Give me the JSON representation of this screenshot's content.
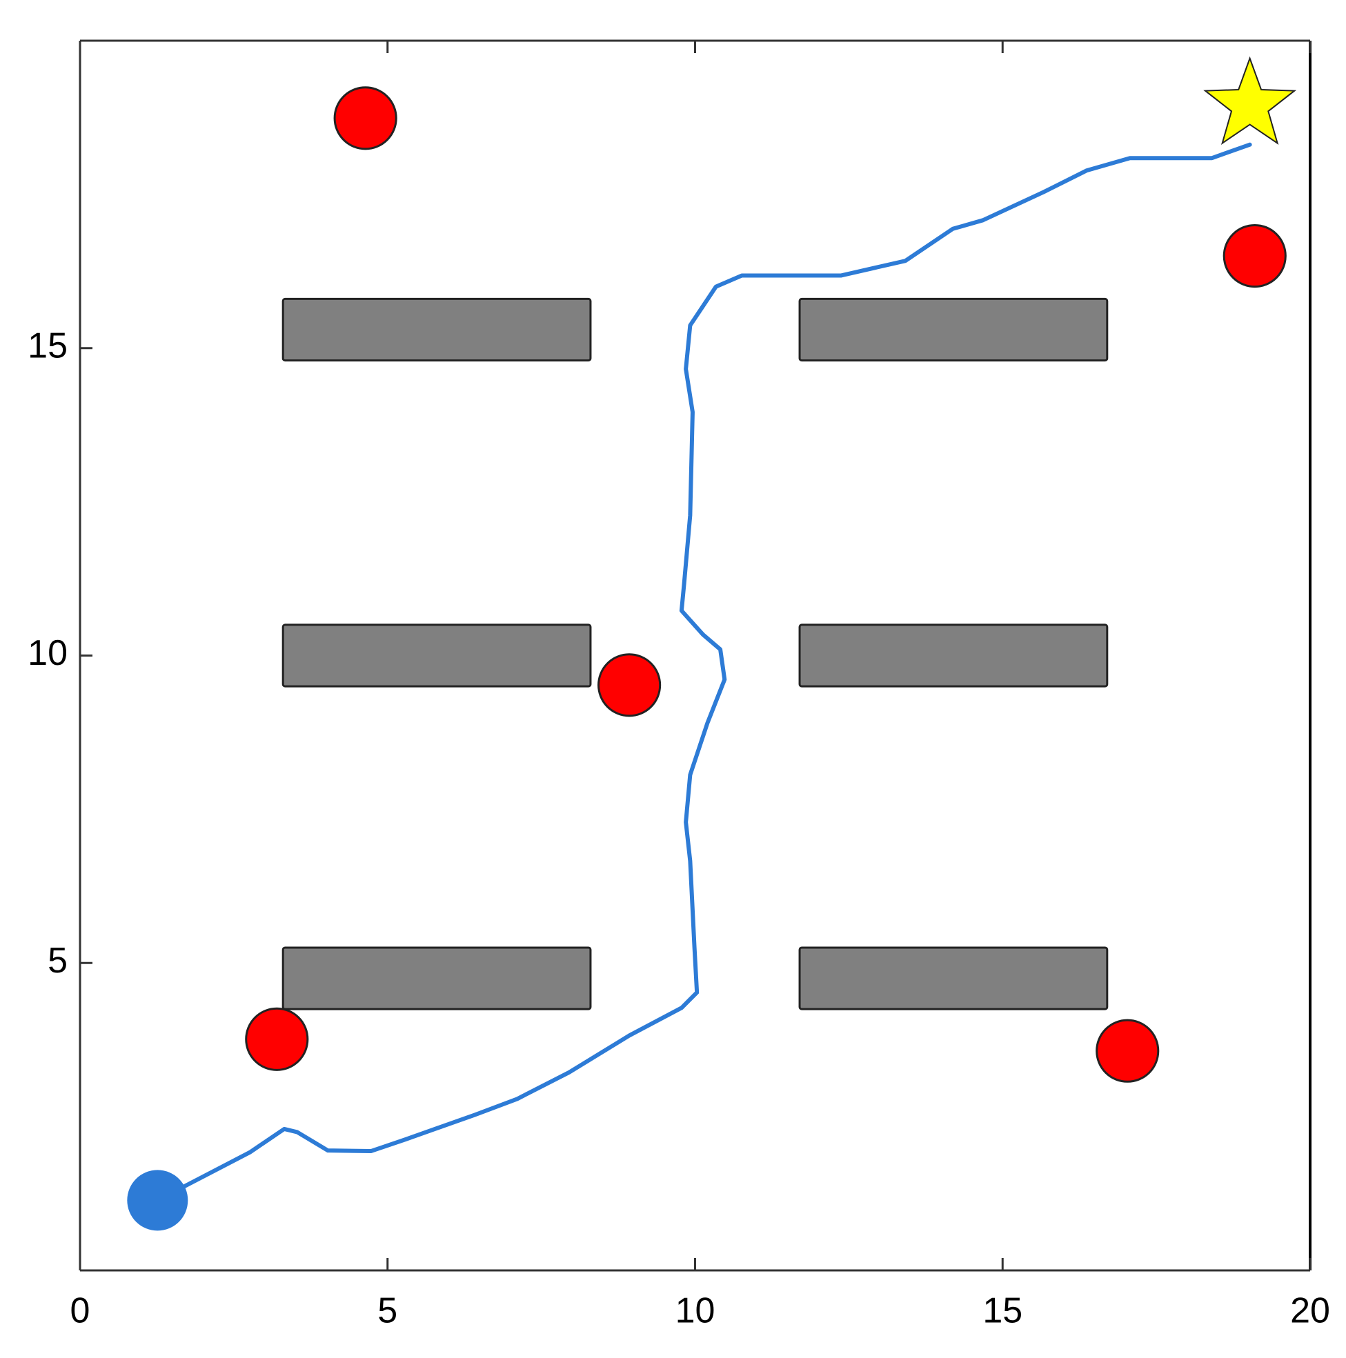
{
  "chart_data": {
    "type": "line",
    "xlim": [
      0,
      20
    ],
    "ylim": [
      0,
      20
    ],
    "xticks": [
      0,
      5,
      10,
      15,
      20
    ],
    "yticks": [
      5,
      10,
      15
    ],
    "grid": false,
    "x": [
      1.26,
      2.76,
      3.32,
      3.53,
      4.03,
      4.73,
      5.29,
      6.42,
      7.11,
      7.95,
      8.93,
      9.78,
      10.03,
      9.99,
      9.92,
      9.85,
      9.92,
      10.2,
      10.48,
      10.41,
      10.13,
      9.78,
      9.82,
      9.92,
      9.96,
      9.85,
      9.92,
      10.34,
      10.76,
      12.37,
      13.42,
      14.19,
      14.68,
      15.67,
      16.37,
      17.07,
      18.4,
      19.02
    ],
    "series": [
      {
        "color": "#2d7bd6",
        "values": [
          1.14,
          1.92,
          2.3,
          2.25,
          1.95,
          1.94,
          2.13,
          2.53,
          2.79,
          3.22,
          3.82,
          4.27,
          4.52,
          5.25,
          6.66,
          7.29,
          8.06,
          8.9,
          9.61,
          10.1,
          10.34,
          10.73,
          11.15,
          12.28,
          13.96,
          14.66,
          15.37,
          16.0,
          16.18,
          16.18,
          16.42,
          16.94,
          17.08,
          17.54,
          17.89,
          18.09,
          18.09,
          18.31
        ]
      }
    ],
    "obstacles": {
      "color": "#ff0000",
      "radius": 0.5,
      "x": [
        4.64,
        19.1,
        8.93,
        3.2,
        17.03
      ],
      "y": [
        18.74,
        16.5,
        9.52,
        3.76,
        3.57
      ]
    },
    "walls": {
      "color": "#808080",
      "x0": [
        3.3,
        11.7,
        3.3,
        11.7,
        3.3,
        11.7
      ],
      "x1": [
        8.3,
        16.7,
        8.3,
        16.7,
        8.3,
        16.7
      ],
      "y0": [
        14.8,
        14.8,
        9.5,
        9.5,
        4.25,
        4.25
      ],
      "y1": [
        15.8,
        15.8,
        10.5,
        10.5,
        5.25,
        5.25
      ]
    },
    "start": {
      "x": 1.26,
      "y": 1.14,
      "color": "#2d7bd6"
    },
    "goal": {
      "x": 19.02,
      "y": 18.95,
      "color": "#ffff00"
    }
  }
}
